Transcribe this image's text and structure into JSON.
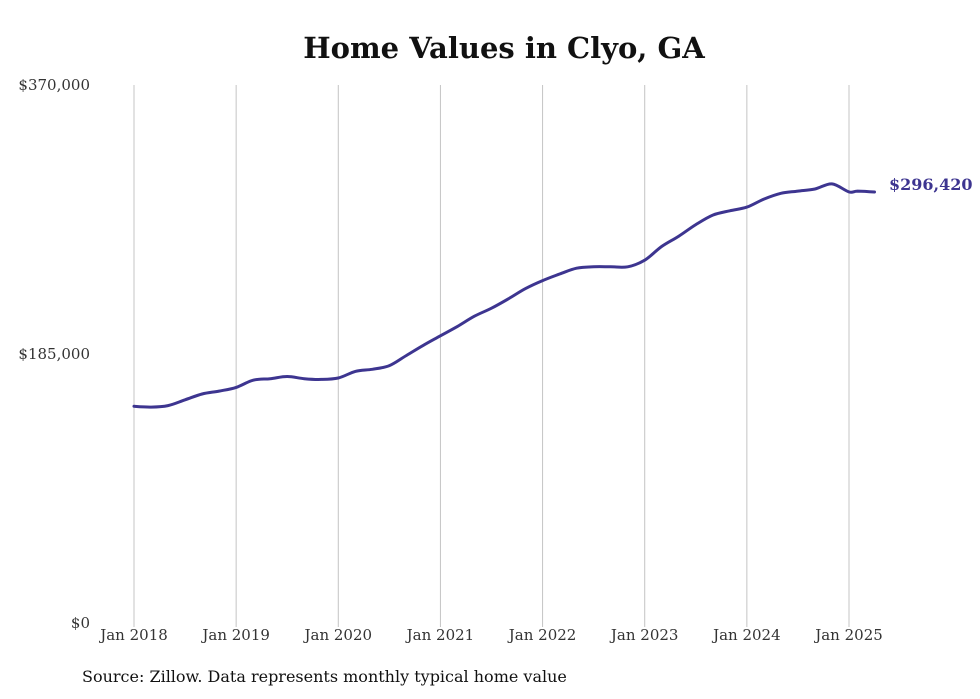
{
  "chart_data": {
    "type": "line",
    "title": "Home Values in Clyo, GA",
    "xlabel": "",
    "ylabel": "",
    "ylim": [
      0,
      370000
    ],
    "yticks": [
      "$0",
      "$185,000",
      "$370,000"
    ],
    "xticks": [
      "Jan 2018",
      "Jan 2019",
      "Jan 2020",
      "Jan 2021",
      "Jan 2022",
      "Jan 2023",
      "Jan 2024",
      "Jan 2025"
    ],
    "grid": "vertical",
    "line_color": "#3d3590",
    "end_label": "$296,420",
    "series": [
      {
        "x": [
          2018.0,
          2018.167,
          2018.333,
          2018.5,
          2018.667,
          2018.833,
          2019.0,
          2019.167,
          2019.333,
          2019.5,
          2019.667,
          2019.833,
          2020.0,
          2020.167,
          2020.333,
          2020.5,
          2020.667,
          2020.833,
          2021.0,
          2021.167,
          2021.333,
          2021.5,
          2021.667,
          2021.833,
          2022.0,
          2022.167,
          2022.333,
          2022.5,
          2022.667,
          2022.833,
          2023.0,
          2023.167,
          2023.333,
          2023.5,
          2023.667,
          2023.833,
          2024.0,
          2024.167,
          2024.333,
          2024.5,
          2024.667,
          2024.833,
          2025.0,
          2025.083,
          2025.25
        ],
        "values": [
          149000,
          148500,
          149500,
          153500,
          157500,
          159500,
          162000,
          167000,
          168000,
          169500,
          168000,
          167500,
          168500,
          173000,
          174500,
          177000,
          184000,
          191000,
          197500,
          204000,
          211000,
          216500,
          223000,
          230000,
          235500,
          240000,
          244000,
          245000,
          245000,
          245000,
          249500,
          259000,
          266000,
          274000,
          280500,
          283500,
          286000,
          291500,
          295500,
          297000,
          298500,
          302000,
          296500,
          297000,
          296420
        ]
      }
    ]
  },
  "footer": {
    "source": "Source: Zillow. Data represents monthly typical home value"
  }
}
